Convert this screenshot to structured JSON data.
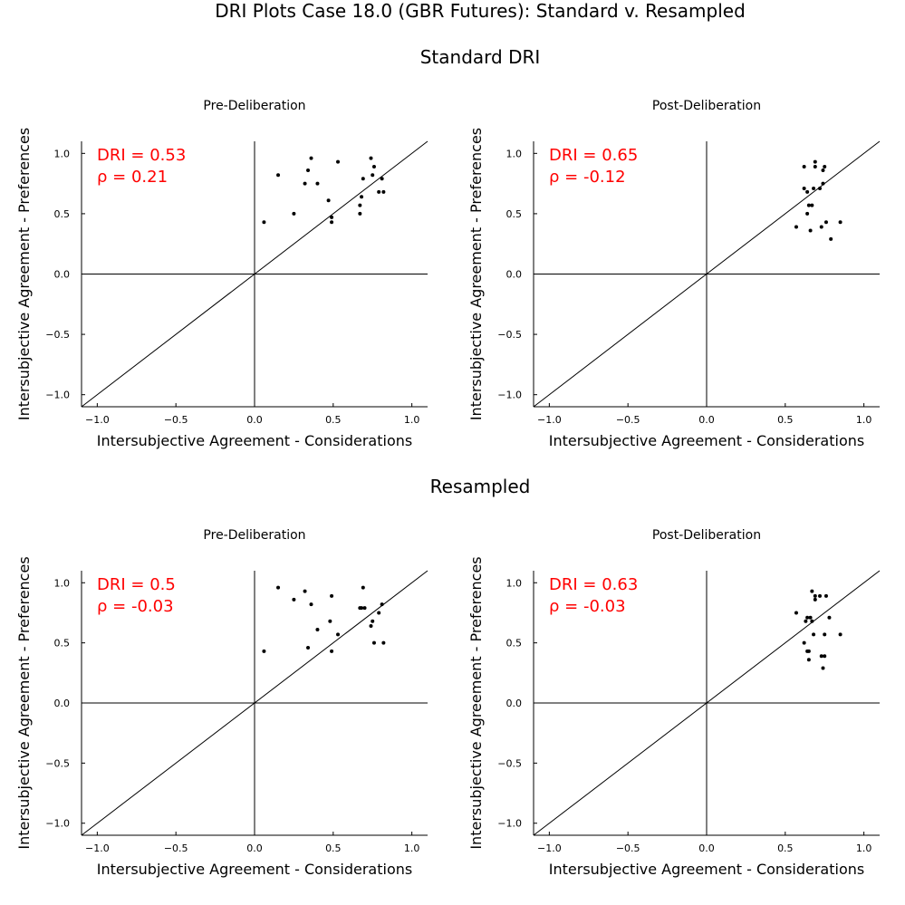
{
  "title": "DRI Plots Case 18.0 (GBR Futures): Standard v. Resampled",
  "sections": [
    "Standard DRI",
    "Resampled"
  ],
  "chart_data": [
    {
      "type": "scatter",
      "section": "Standard DRI",
      "title": "Pre-Deliberation",
      "xlabel": "Intersubjective Agreement - Considerations",
      "ylabel": "Intersubjective Agreement - Preferences",
      "xlim": [
        -1.1,
        1.1
      ],
      "ylim": [
        -1.1,
        1.1
      ],
      "xticks": [
        -1.0,
        -0.5,
        0.0,
        0.5,
        1.0
      ],
      "yticks": [
        -1.0,
        -0.5,
        0.0,
        0.5,
        1.0
      ],
      "xtick_labels": [
        "−1.0",
        "−0.5",
        "0.0",
        "0.5",
        "1.0"
      ],
      "ytick_labels": [
        "−1.0",
        "−0.5",
        "0.0",
        "0.5",
        "1.0"
      ],
      "dri_label": "DRI = 0.53",
      "rho_label": "ρ = 0.21",
      "points": [
        [
          0.06,
          0.43
        ],
        [
          0.15,
          0.82
        ],
        [
          0.25,
          0.5
        ],
        [
          0.32,
          0.75
        ],
        [
          0.34,
          0.86
        ],
        [
          0.36,
          0.96
        ],
        [
          0.4,
          0.75
        ],
        [
          0.47,
          0.61
        ],
        [
          0.49,
          0.47
        ],
        [
          0.49,
          0.43
        ],
        [
          0.53,
          0.93
        ],
        [
          0.67,
          0.57
        ],
        [
          0.67,
          0.5
        ],
        [
          0.68,
          0.64
        ],
        [
          0.69,
          0.79
        ],
        [
          0.74,
          0.96
        ],
        [
          0.75,
          0.82
        ],
        [
          0.76,
          0.89
        ],
        [
          0.79,
          0.68
        ],
        [
          0.81,
          0.79
        ],
        [
          0.82,
          0.68
        ]
      ]
    },
    {
      "type": "scatter",
      "section": "Standard DRI",
      "title": "Post-Deliberation",
      "xlabel": "Intersubjective Agreement - Considerations",
      "ylabel": "Intersubjective Agreement - Preferences",
      "xlim": [
        -1.1,
        1.1
      ],
      "ylim": [
        -1.1,
        1.1
      ],
      "xticks": [
        -1.0,
        -0.5,
        0.0,
        0.5,
        1.0
      ],
      "yticks": [
        -1.0,
        -0.5,
        0.0,
        0.5,
        1.0
      ],
      "xtick_labels": [
        "−1.0",
        "−0.5",
        "0.0",
        "0.5",
        "1.0"
      ],
      "ytick_labels": [
        "−1.0",
        "−0.5",
        "0.0",
        "0.5",
        "1.0"
      ],
      "dri_label": "DRI = 0.65",
      "rho_label": "ρ = -0.12",
      "points": [
        [
          0.57,
          0.39
        ],
        [
          0.62,
          0.89
        ],
        [
          0.62,
          0.71
        ],
        [
          0.64,
          0.68
        ],
        [
          0.64,
          0.5
        ],
        [
          0.65,
          0.57
        ],
        [
          0.66,
          0.36
        ],
        [
          0.67,
          0.57
        ],
        [
          0.68,
          0.71
        ],
        [
          0.69,
          0.93
        ],
        [
          0.69,
          0.89
        ],
        [
          0.72,
          0.71
        ],
        [
          0.73,
          0.39
        ],
        [
          0.74,
          0.86
        ],
        [
          0.74,
          0.75
        ],
        [
          0.75,
          0.89
        ],
        [
          0.76,
          0.43
        ],
        [
          0.79,
          0.29
        ],
        [
          0.85,
          0.43
        ]
      ]
    },
    {
      "type": "scatter",
      "section": "Resampled",
      "title": "Pre-Deliberation",
      "xlabel": "Intersubjective Agreement - Considerations",
      "ylabel": "Intersubjective Agreement - Preferences",
      "xlim": [
        -1.1,
        1.1
      ],
      "ylim": [
        -1.1,
        1.1
      ],
      "xticks": [
        -1.0,
        -0.5,
        0.0,
        0.5,
        1.0
      ],
      "yticks": [
        -1.0,
        -0.5,
        0.0,
        0.5,
        1.0
      ],
      "xtick_labels": [
        "−1.0",
        "−0.5",
        "0.0",
        "0.5",
        "1.0"
      ],
      "ytick_labels": [
        "−1.0",
        "−0.5",
        "0.0",
        "0.5",
        "1.0"
      ],
      "dri_label": "DRI = 0.5",
      "rho_label": "ρ = -0.03",
      "points": [
        [
          0.06,
          0.43
        ],
        [
          0.15,
          0.96
        ],
        [
          0.25,
          0.86
        ],
        [
          0.32,
          0.93
        ],
        [
          0.34,
          0.46
        ],
        [
          0.36,
          0.82
        ],
        [
          0.4,
          0.61
        ],
        [
          0.48,
          0.68
        ],
        [
          0.49,
          0.89
        ],
        [
          0.49,
          0.43
        ],
        [
          0.53,
          0.57
        ],
        [
          0.67,
          0.79
        ],
        [
          0.68,
          0.79
        ],
        [
          0.69,
          0.96
        ],
        [
          0.7,
          0.79
        ],
        [
          0.74,
          0.64
        ],
        [
          0.75,
          0.68
        ],
        [
          0.76,
          0.5
        ],
        [
          0.79,
          0.75
        ],
        [
          0.81,
          0.82
        ],
        [
          0.82,
          0.5
        ]
      ]
    },
    {
      "type": "scatter",
      "section": "Resampled",
      "title": "Post-Deliberation",
      "xlabel": "Intersubjective Agreement - Considerations",
      "ylabel": "Intersubjective Agreement - Preferences",
      "xlim": [
        -1.1,
        1.1
      ],
      "ylim": [
        -1.1,
        1.1
      ],
      "xticks": [
        -1.0,
        -0.5,
        0.0,
        0.5,
        1.0
      ],
      "yticks": [
        -1.0,
        -0.5,
        0.0,
        0.5,
        1.0
      ],
      "xtick_labels": [
        "−1.0",
        "−0.5",
        "0.0",
        "0.5",
        "1.0"
      ],
      "ytick_labels": [
        "−1.0",
        "−0.5",
        "0.0",
        "0.5",
        "1.0"
      ],
      "dri_label": "DRI = 0.63",
      "rho_label": "ρ = -0.03",
      "points": [
        [
          0.57,
          0.75
        ],
        [
          0.62,
          0.5
        ],
        [
          0.63,
          0.68
        ],
        [
          0.64,
          0.43
        ],
        [
          0.64,
          0.71
        ],
        [
          0.65,
          0.43
        ],
        [
          0.65,
          0.36
        ],
        [
          0.66,
          0.71
        ],
        [
          0.67,
          0.68
        ],
        [
          0.67,
          0.93
        ],
        [
          0.68,
          0.57
        ],
        [
          0.69,
          0.89
        ],
        [
          0.69,
          0.86
        ],
        [
          0.72,
          0.89
        ],
        [
          0.73,
          0.39
        ],
        [
          0.74,
          0.29
        ],
        [
          0.75,
          0.39
        ],
        [
          0.75,
          0.57
        ],
        [
          0.76,
          0.89
        ],
        [
          0.78,
          0.71
        ],
        [
          0.85,
          0.57
        ]
      ]
    }
  ]
}
